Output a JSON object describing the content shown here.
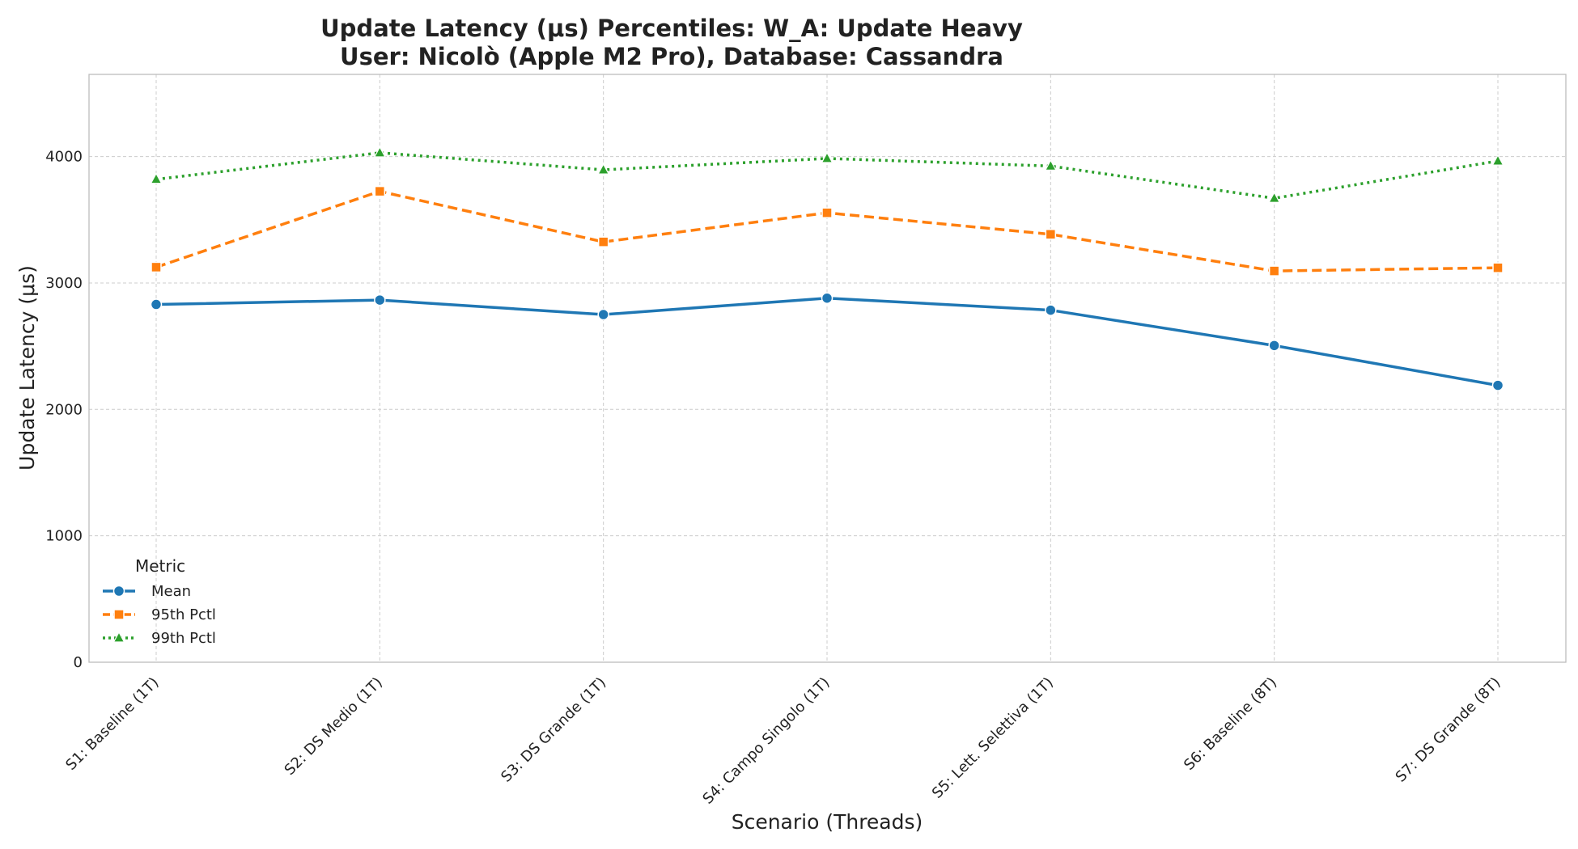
{
  "chart_data": {
    "type": "line",
    "title": "Update Latency (μs) Percentiles: W_A: Update Heavy",
    "subtitle": "User: Nicolò (Apple M2 Pro), Database: Cassandra",
    "xlabel": "Scenario (Threads)",
    "ylabel": "Update Latency (μs)",
    "ylim": [
      0,
      4650
    ],
    "yticks": [
      0,
      1000,
      2000,
      3000,
      4000
    ],
    "grid": true,
    "legend": {
      "title": "Metric",
      "placement": "lower-left"
    },
    "categories": [
      "S1: Baseline (1T)",
      "S2: DS Medio (1T)",
      "S3: DS Grande (1T)",
      "S4: Campo Singolo (1T)",
      "S5: Lett. Selettiva (1T)",
      "S6: Baseline (8T)",
      "S7: DS Grande (8T)"
    ],
    "series": [
      {
        "name": "Mean",
        "color": "#1f77b4",
        "style": "solid",
        "marker": "circle",
        "values": [
          2830,
          2865,
          2750,
          2880,
          2785,
          2505,
          2190
        ]
      },
      {
        "name": "95th Pctl",
        "color": "#ff7f0e",
        "style": "dashed",
        "marker": "square",
        "values": [
          3125,
          3725,
          3325,
          3555,
          3385,
          3095,
          3120
        ]
      },
      {
        "name": "99th Pctl",
        "color": "#2ca02c",
        "style": "dotted",
        "marker": "triangle",
        "values": [
          3820,
          4030,
          3895,
          3985,
          3925,
          3670,
          3965
        ]
      }
    ]
  }
}
